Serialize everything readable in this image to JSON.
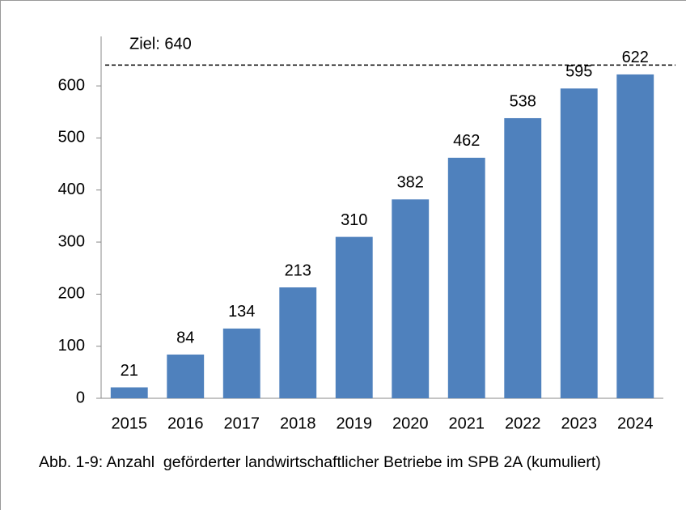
{
  "chart_data": {
    "type": "bar",
    "categories": [
      "2015",
      "2016",
      "2017",
      "2018",
      "2019",
      "2020",
      "2021",
      "2022",
      "2023",
      "2024"
    ],
    "values": [
      21,
      84,
      134,
      213,
      310,
      382,
      462,
      538,
      595,
      622
    ],
    "color": "#4f81bd",
    "ylim": [
      0,
      695
    ],
    "yticks": [
      0,
      100,
      200,
      300,
      400,
      500,
      600
    ],
    "grid": false,
    "target": {
      "label": "Ziel: 640",
      "value": 640
    },
    "caption": "Abb. 1-9: Anzahl  geförderter landwirtschaftlicher Betriebe im SPB 2A (kumuliert)"
  }
}
